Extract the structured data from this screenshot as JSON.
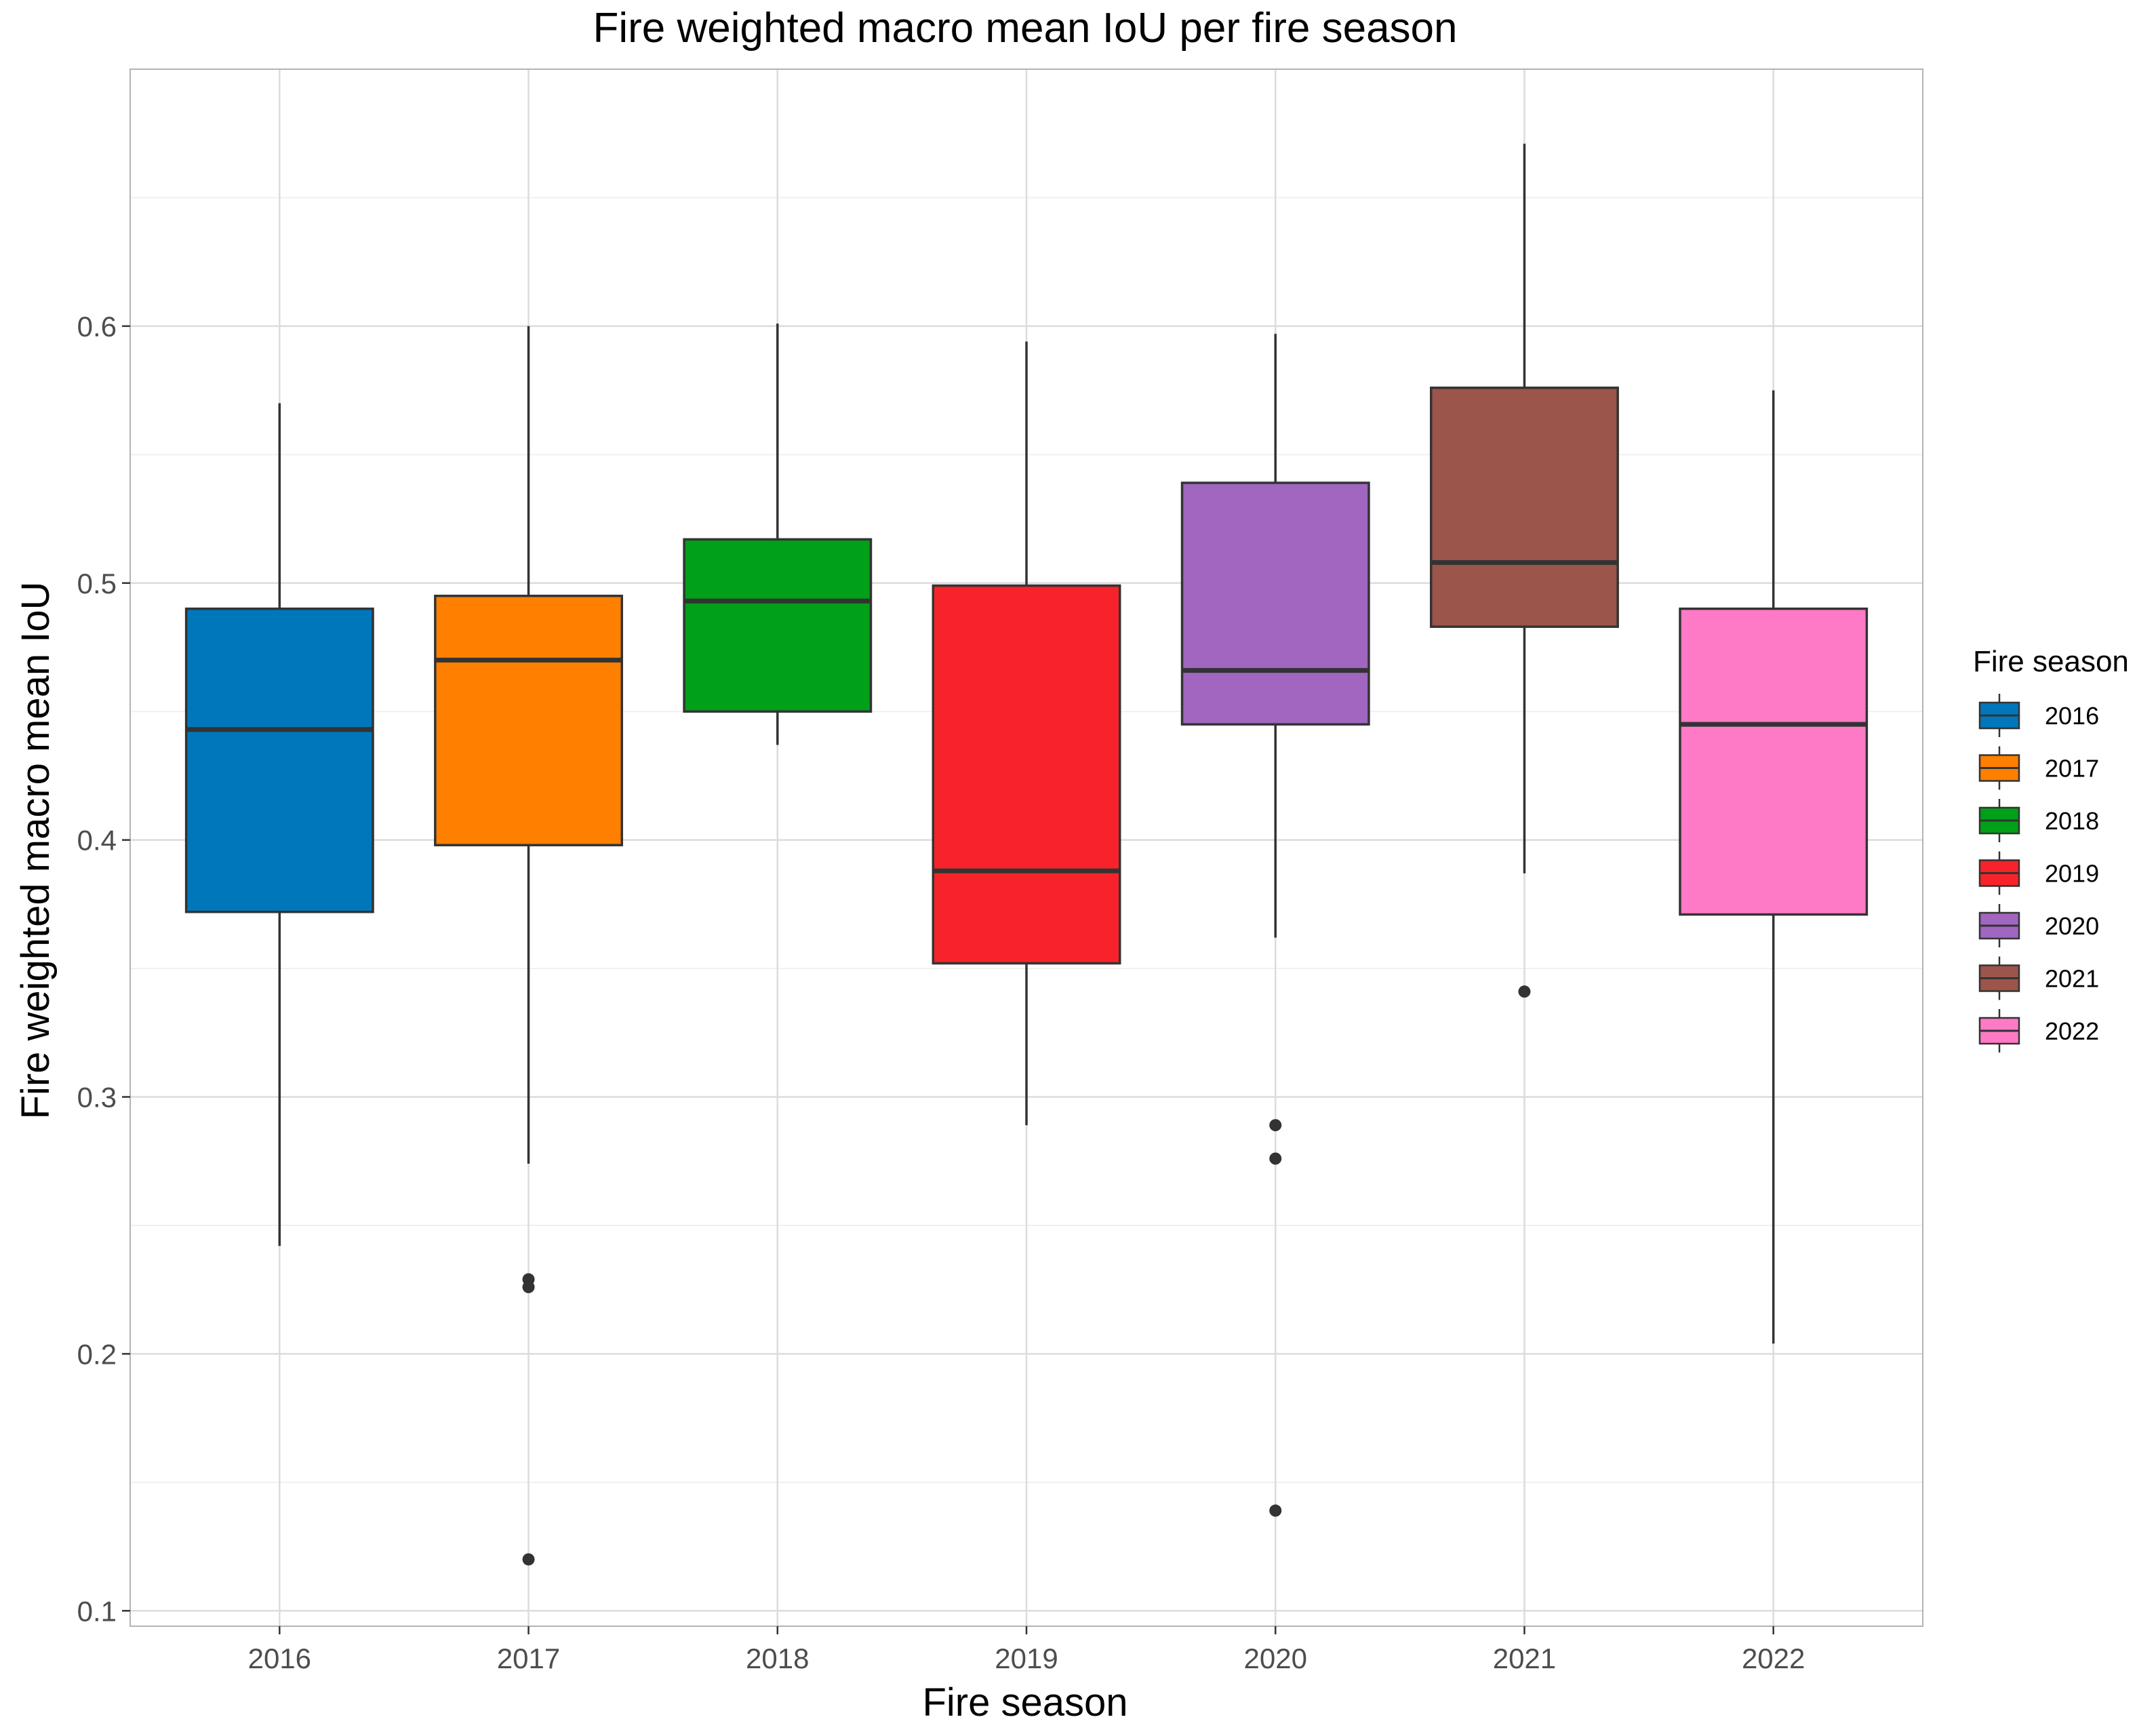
{
  "chart_data": {
    "type": "boxplot",
    "title": "Fire weighted macro mean IoU per fire season",
    "xlabel": "Fire season",
    "ylabel": "Fire weighted macro mean IoU",
    "ylim": [
      0.094,
      0.7
    ],
    "yticks": [
      0.1,
      0.2,
      0.3,
      0.4,
      0.5,
      0.6
    ],
    "ytick_labels": [
      "0.1",
      "0.2",
      "0.3",
      "0.4",
      "0.5",
      "0.6"
    ],
    "grid": true,
    "legend": {
      "title": "Fire season",
      "position": "right"
    },
    "categories": [
      "2016",
      "2017",
      "2018",
      "2019",
      "2020",
      "2021",
      "2022"
    ],
    "colors": [
      "#0077BB",
      "#FF7F00",
      "#00A019",
      "#F8232A",
      "#A066C0",
      "#9B554B",
      "#FF7AC6"
    ],
    "boxes": [
      {
        "label": "2016",
        "whisker_low": 0.242,
        "q1": 0.372,
        "median": 0.443,
        "q3": 0.49,
        "whisker_high": 0.57,
        "outliers": []
      },
      {
        "label": "2017",
        "whisker_low": 0.274,
        "q1": 0.398,
        "median": 0.47,
        "q3": 0.495,
        "whisker_high": 0.6,
        "outliers": [
          0.229,
          0.226,
          0.12
        ]
      },
      {
        "label": "2018",
        "whisker_low": 0.437,
        "q1": 0.45,
        "median": 0.493,
        "q3": 0.517,
        "whisker_high": 0.601,
        "outliers": []
      },
      {
        "label": "2019",
        "whisker_low": 0.289,
        "q1": 0.352,
        "median": 0.388,
        "q3": 0.499,
        "whisker_high": 0.594,
        "outliers": []
      },
      {
        "label": "2020",
        "whisker_low": 0.362,
        "q1": 0.445,
        "median": 0.466,
        "q3": 0.539,
        "whisker_high": 0.597,
        "outliers": [
          0.289,
          0.276,
          0.139
        ]
      },
      {
        "label": "2021",
        "whisker_low": 0.387,
        "q1": 0.483,
        "median": 0.508,
        "q3": 0.576,
        "whisker_high": 0.671,
        "outliers": [
          0.341
        ]
      },
      {
        "label": "2022",
        "whisker_low": 0.204,
        "q1": 0.371,
        "median": 0.445,
        "q3": 0.49,
        "whisker_high": 0.575,
        "outliers": []
      }
    ]
  }
}
